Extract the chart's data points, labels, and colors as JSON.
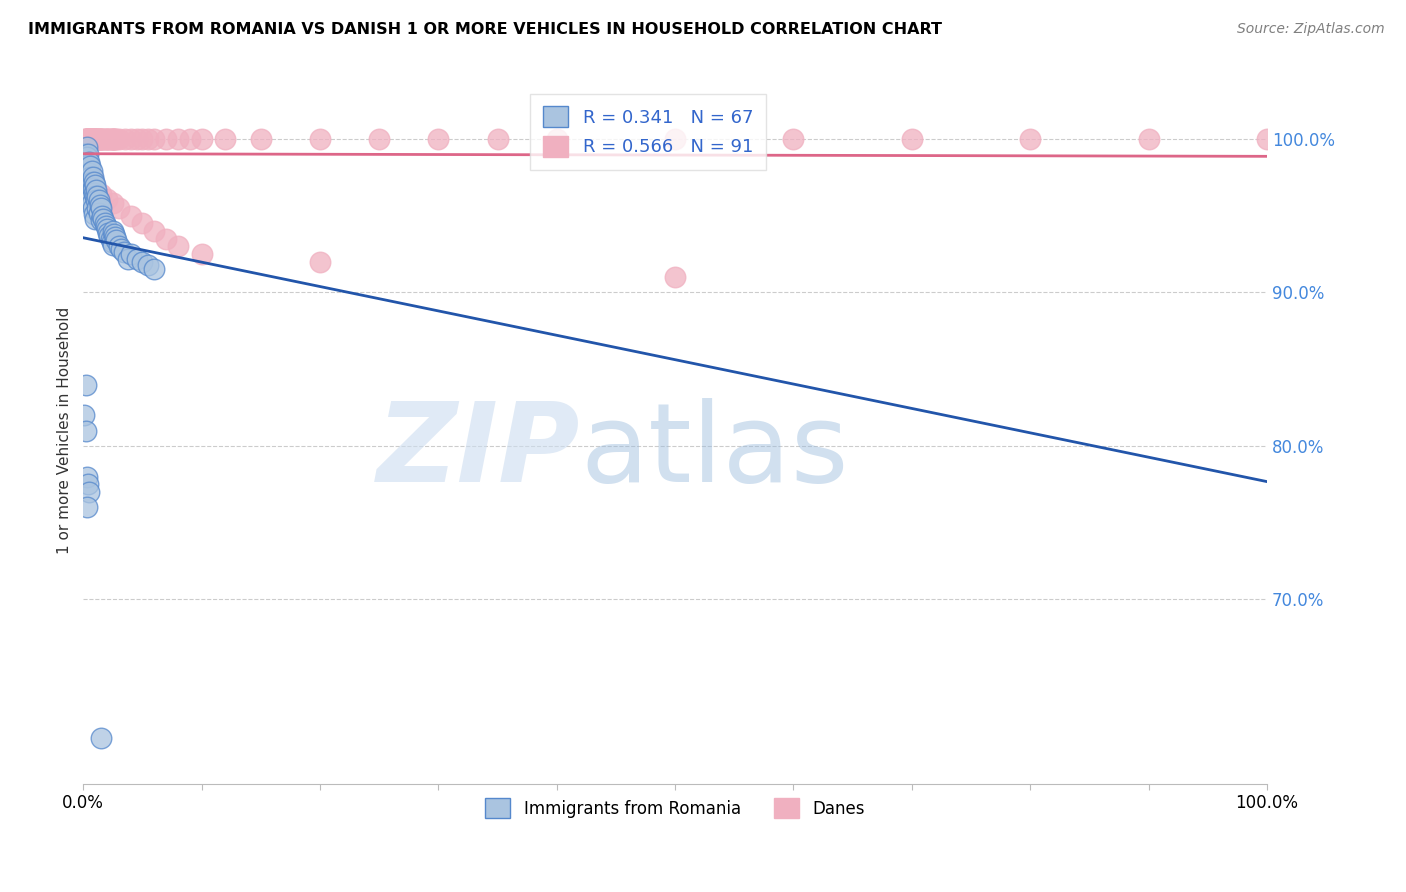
{
  "title": "IMMIGRANTS FROM ROMANIA VS DANISH 1 OR MORE VEHICLES IN HOUSEHOLD CORRELATION CHART",
  "source": "Source: ZipAtlas.com",
  "ylabel": "1 or more Vehicles in Household",
  "xlim": [
    0.0,
    1.0
  ],
  "ylim": [
    0.58,
    1.04
  ],
  "romania_R": 0.341,
  "romania_N": 67,
  "danes_R": 0.566,
  "danes_N": 91,
  "romania_color": "#aac4e0",
  "romania_edge_color": "#5588cc",
  "danes_color": "#f0b0c0",
  "danes_edge_color": "#f0b0c0",
  "romania_line_color": "#2255aa",
  "danes_line_color": "#dd6688",
  "legend_romania_label": "Immigrants from Romania",
  "legend_danes_label": "Danes",
  "romania_x": [
    0.001,
    0.002,
    0.002,
    0.003,
    0.003,
    0.003,
    0.004,
    0.004,
    0.004,
    0.005,
    0.005,
    0.005,
    0.006,
    0.006,
    0.006,
    0.007,
    0.007,
    0.007,
    0.008,
    0.008,
    0.008,
    0.009,
    0.009,
    0.009,
    0.01,
    0.01,
    0.01,
    0.011,
    0.011,
    0.012,
    0.012,
    0.013,
    0.013,
    0.014,
    0.015,
    0.015,
    0.016,
    0.017,
    0.018,
    0.019,
    0.02,
    0.021,
    0.022,
    0.023,
    0.024,
    0.025,
    0.025,
    0.026,
    0.027,
    0.028,
    0.03,
    0.032,
    0.034,
    0.038,
    0.04,
    0.045,
    0.05,
    0.055,
    0.06,
    0.001,
    0.002,
    0.003,
    0.004,
    0.005,
    0.002,
    0.003,
    0.015
  ],
  "romania_y": [
    0.99,
    0.99,
    0.985,
    0.995,
    0.988,
    0.975,
    0.99,
    0.983,
    0.97,
    0.985,
    0.978,
    0.965,
    0.982,
    0.975,
    0.96,
    0.979,
    0.972,
    0.958,
    0.975,
    0.968,
    0.955,
    0.972,
    0.965,
    0.951,
    0.97,
    0.963,
    0.948,
    0.967,
    0.96,
    0.963,
    0.955,
    0.96,
    0.952,
    0.957,
    0.955,
    0.947,
    0.95,
    0.948,
    0.945,
    0.943,
    0.941,
    0.939,
    0.937,
    0.935,
    0.933,
    0.931,
    0.94,
    0.938,
    0.936,
    0.934,
    0.93,
    0.928,
    0.926,
    0.922,
    0.925,
    0.922,
    0.92,
    0.918,
    0.915,
    0.82,
    0.81,
    0.78,
    0.775,
    0.77,
    0.84,
    0.76,
    0.61
  ],
  "danes_x": [
    0.001,
    0.002,
    0.002,
    0.003,
    0.003,
    0.003,
    0.004,
    0.004,
    0.004,
    0.005,
    0.005,
    0.005,
    0.006,
    0.006,
    0.006,
    0.007,
    0.007,
    0.008,
    0.008,
    0.009,
    0.009,
    0.01,
    0.01,
    0.011,
    0.011,
    0.012,
    0.012,
    0.013,
    0.013,
    0.014,
    0.015,
    0.015,
    0.016,
    0.017,
    0.018,
    0.019,
    0.02,
    0.021,
    0.022,
    0.023,
    0.024,
    0.025,
    0.025,
    0.026,
    0.027,
    0.028,
    0.03,
    0.035,
    0.04,
    0.045,
    0.05,
    0.055,
    0.06,
    0.07,
    0.08,
    0.09,
    0.1,
    0.12,
    0.15,
    0.2,
    0.25,
    0.3,
    0.35,
    0.4,
    0.5,
    0.6,
    0.7,
    0.8,
    0.9,
    1.0,
    0.002,
    0.003,
    0.004,
    0.005,
    0.006,
    0.007,
    0.008,
    0.009,
    0.01,
    0.015,
    0.02,
    0.025,
    0.03,
    0.04,
    0.05,
    0.06,
    0.07,
    0.08,
    0.1,
    0.2,
    0.5
  ],
  "danes_y": [
    1.0,
    1.0,
    1.0,
    1.0,
    1.0,
    1.0,
    1.0,
    1.0,
    1.0,
    1.0,
    1.0,
    1.0,
    1.0,
    1.0,
    1.0,
    1.0,
    1.0,
    1.0,
    1.0,
    1.0,
    1.0,
    1.0,
    1.0,
    1.0,
    1.0,
    1.0,
    1.0,
    1.0,
    1.0,
    1.0,
    1.0,
    1.0,
    1.0,
    1.0,
    1.0,
    1.0,
    1.0,
    1.0,
    1.0,
    1.0,
    1.0,
    1.0,
    1.0,
    1.0,
    1.0,
    1.0,
    1.0,
    1.0,
    1.0,
    1.0,
    1.0,
    1.0,
    1.0,
    1.0,
    1.0,
    1.0,
    1.0,
    1.0,
    1.0,
    1.0,
    1.0,
    1.0,
    1.0,
    1.0,
    1.0,
    1.0,
    1.0,
    1.0,
    1.0,
    1.0,
    0.99,
    0.988,
    0.985,
    0.982,
    0.979,
    0.976,
    0.973,
    0.97,
    0.967,
    0.964,
    0.961,
    0.958,
    0.955,
    0.95,
    0.945,
    0.94,
    0.935,
    0.93,
    0.925,
    0.92,
    0.91
  ]
}
